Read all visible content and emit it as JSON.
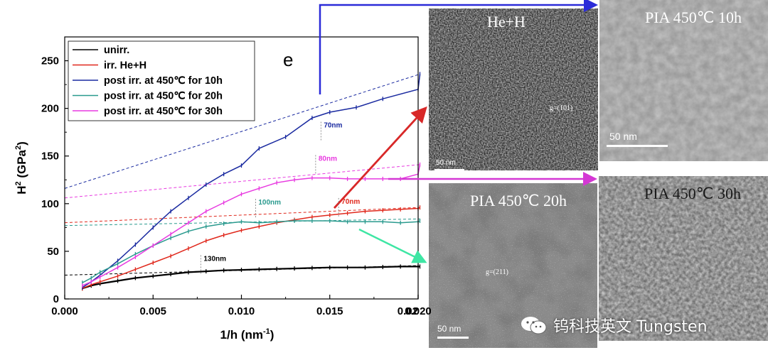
{
  "chart_data": {
    "type": "line",
    "panel_label": "e",
    "xlabel": "1/h (nm",
    "xlabel_sup": "-1",
    "xlabel_end": ")",
    "ylabel": "H",
    "ylabel_sup1": "2",
    "ylabel_mid": " (GPa",
    "ylabel_sup2": "2",
    "ylabel_end": ")",
    "xlim": [
      0.0,
      0.02
    ],
    "ylim": [
      0,
      275
    ],
    "xticks": [
      "0.000",
      "0.005",
      "0.010",
      "0.015",
      "0.020",
      "0.02"
    ],
    "yticks": [
      "0",
      "50",
      "100",
      "150",
      "200",
      "250"
    ],
    "legend_position": "top-left",
    "series": [
      {
        "name": "unirr.",
        "color": "#000000",
        "points": [
          [
            0.001,
            11
          ],
          [
            0.0015,
            14
          ],
          [
            0.002,
            16
          ],
          [
            0.003,
            19
          ],
          [
            0.004,
            22
          ],
          [
            0.005,
            24
          ],
          [
            0.006,
            26
          ],
          [
            0.007,
            28
          ],
          [
            0.008,
            29
          ],
          [
            0.009,
            30
          ],
          [
            0.01,
            30.5
          ],
          [
            0.011,
            31
          ],
          [
            0.012,
            31.5
          ],
          [
            0.013,
            32
          ],
          [
            0.014,
            32.5
          ],
          [
            0.015,
            33
          ],
          [
            0.016,
            33
          ],
          [
            0.017,
            33
          ],
          [
            0.018,
            33.5
          ],
          [
            0.019,
            34
          ],
          [
            0.02,
            34
          ],
          [
            0.0201,
            34
          ]
        ],
        "fit_line": [
          [
            0.0,
            25
          ],
          [
            0.02,
            35
          ]
        ],
        "annotation": "130nm",
        "annotation_xy": [
          0.0077,
          40
        ]
      },
      {
        "name": "irr. He+H",
        "color": "#e0281c",
        "points": [
          [
            0.001,
            11
          ],
          [
            0.0015,
            15
          ],
          [
            0.002,
            18
          ],
          [
            0.003,
            24
          ],
          [
            0.004,
            31
          ],
          [
            0.005,
            38
          ],
          [
            0.006,
            45
          ],
          [
            0.007,
            53
          ],
          [
            0.008,
            61
          ],
          [
            0.009,
            67
          ],
          [
            0.01,
            72
          ],
          [
            0.011,
            76
          ],
          [
            0.012,
            80
          ],
          [
            0.013,
            83
          ],
          [
            0.014,
            86
          ],
          [
            0.015,
            88
          ],
          [
            0.016,
            90
          ],
          [
            0.017,
            92
          ],
          [
            0.018,
            93
          ],
          [
            0.019,
            94
          ],
          [
            0.02,
            95
          ],
          [
            0.0201,
            96
          ]
        ],
        "fit_line": [
          [
            0.0,
            80
          ],
          [
            0.02,
            96
          ]
        ],
        "annotation": "70nm",
        "annotation_xy": [
          0.0155,
          100
        ]
      },
      {
        "name": "post irr. at 450℃ for 10h",
        "color": "#1a2aa0",
        "points": [
          [
            0.001,
            12
          ],
          [
            0.0015,
            18
          ],
          [
            0.002,
            25
          ],
          [
            0.003,
            40
          ],
          [
            0.004,
            57
          ],
          [
            0.005,
            75
          ],
          [
            0.006,
            92
          ],
          [
            0.007,
            106
          ],
          [
            0.008,
            120
          ],
          [
            0.009,
            131
          ],
          [
            0.01,
            140
          ],
          [
            0.011,
            158
          ],
          [
            0.0125,
            170
          ],
          [
            0.014,
            190
          ],
          [
            0.015,
            196
          ],
          [
            0.0165,
            201
          ],
          [
            0.018,
            210
          ],
          [
            0.02,
            220
          ],
          [
            0.0201,
            236
          ]
        ],
        "fit_line": [
          [
            0.0,
            116
          ],
          [
            0.0201,
            236
          ]
        ],
        "annotation": "70nm",
        "annotation_xy": [
          0.0145,
          180
        ]
      },
      {
        "name": "post irr. at 450℃ for 20h",
        "color": "#2a9a8e",
        "points": [
          [
            0.001,
            17
          ],
          [
            0.0015,
            22
          ],
          [
            0.002,
            28
          ],
          [
            0.003,
            37
          ],
          [
            0.004,
            47
          ],
          [
            0.005,
            56
          ],
          [
            0.006,
            64
          ],
          [
            0.007,
            71
          ],
          [
            0.008,
            76
          ],
          [
            0.009,
            79
          ],
          [
            0.01,
            81
          ],
          [
            0.011,
            80
          ],
          [
            0.012,
            81
          ],
          [
            0.013,
            82
          ],
          [
            0.014,
            82
          ],
          [
            0.015,
            82
          ],
          [
            0.016,
            81
          ],
          [
            0.017,
            81
          ],
          [
            0.018,
            81
          ],
          [
            0.019,
            80
          ],
          [
            0.02,
            81
          ],
          [
            0.0201,
            82
          ]
        ],
        "fit_line": [
          [
            0.0,
            77
          ],
          [
            0.0201,
            84
          ]
        ],
        "annotation": "100nm",
        "annotation_xy": [
          0.0108,
          99
        ]
      },
      {
        "name": "post irr. at 450℃ for 30h",
        "color": "#e83ae0",
        "points": [
          [
            0.001,
            14
          ],
          [
            0.0015,
            18
          ],
          [
            0.002,
            23
          ],
          [
            0.003,
            33
          ],
          [
            0.004,
            44
          ],
          [
            0.005,
            56
          ],
          [
            0.006,
            68
          ],
          [
            0.007,
            80
          ],
          [
            0.008,
            92
          ],
          [
            0.009,
            101
          ],
          [
            0.01,
            110
          ],
          [
            0.011,
            116
          ],
          [
            0.012,
            122
          ],
          [
            0.013,
            125
          ],
          [
            0.014,
            127
          ],
          [
            0.015,
            127
          ],
          [
            0.016,
            126
          ],
          [
            0.017,
            126
          ],
          [
            0.018,
            126
          ],
          [
            0.019,
            126
          ],
          [
            0.02,
            131
          ],
          [
            0.0201,
            141
          ]
        ],
        "fit_line": [
          [
            0.0,
            106
          ],
          [
            0.0201,
            141
          ]
        ],
        "annotation": "80nm",
        "annotation_xy": [
          0.0142,
          145
        ]
      }
    ]
  },
  "micrographs": {
    "he_h": {
      "title": "He+H",
      "scale": "50 nm",
      "g_vector": "g=(101)"
    },
    "pia_10h": {
      "title": "PIA 450℃ 10h",
      "scale": "50 nm"
    },
    "pia_20h": {
      "title": "PIA 450℃ 20h",
      "scale": "50 nm",
      "g_vector": "g=(211)"
    },
    "pia_30h": {
      "title": "PIA 450℃ 30h"
    }
  },
  "watermark": {
    "text": "钨科技英文 Tungsten"
  },
  "colors": {
    "arrow_blue": "#2b2bd8",
    "arrow_red": "#d82828",
    "arrow_magenta": "#d437d4",
    "arrow_green": "#3ee6a4"
  }
}
